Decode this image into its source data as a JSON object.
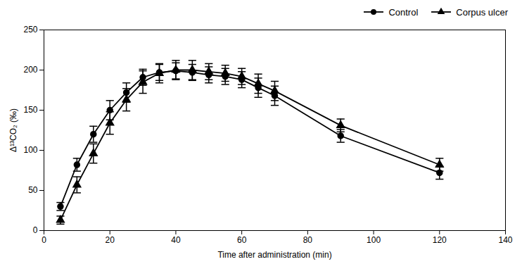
{
  "chart_data": {
    "type": "line",
    "xlabel": "Time after administration (min)",
    "ylabel": "Δ¹³CO₂ (‰)",
    "x": [
      5,
      10,
      15,
      20,
      25,
      30,
      35,
      40,
      45,
      50,
      55,
      60,
      65,
      70,
      90,
      120
    ],
    "series": [
      {
        "name": "Control",
        "color": "#000000",
        "marker": "circle",
        "values": [
          30,
          82,
          120,
          150,
          172,
          191,
          197,
          199,
          197,
          194,
          192,
          188,
          178,
          168,
          118,
          72
        ],
        "yerr": [
          5,
          8,
          10,
          12,
          12,
          10,
          10,
          10,
          10,
          10,
          10,
          10,
          12,
          12,
          8,
          8
        ]
      },
      {
        "name": "Corpus ulcer",
        "color": "#000000",
        "marker": "triangle",
        "values": [
          13,
          57,
          96,
          134,
          163,
          185,
          196,
          200,
          200,
          198,
          196,
          192,
          183,
          174,
          131,
          82
        ],
        "yerr": [
          5,
          10,
          12,
          14,
          14,
          14,
          12,
          12,
          12,
          10,
          10,
          10,
          12,
          12,
          8,
          8
        ]
      }
    ],
    "xlim": [
      0,
      140
    ],
    "ylim": [
      0,
      250
    ],
    "xticks": [
      0,
      20,
      40,
      60,
      80,
      100,
      120,
      140
    ],
    "yticks": [
      0,
      50,
      100,
      150,
      200,
      250
    ],
    "legend": "upper right"
  }
}
